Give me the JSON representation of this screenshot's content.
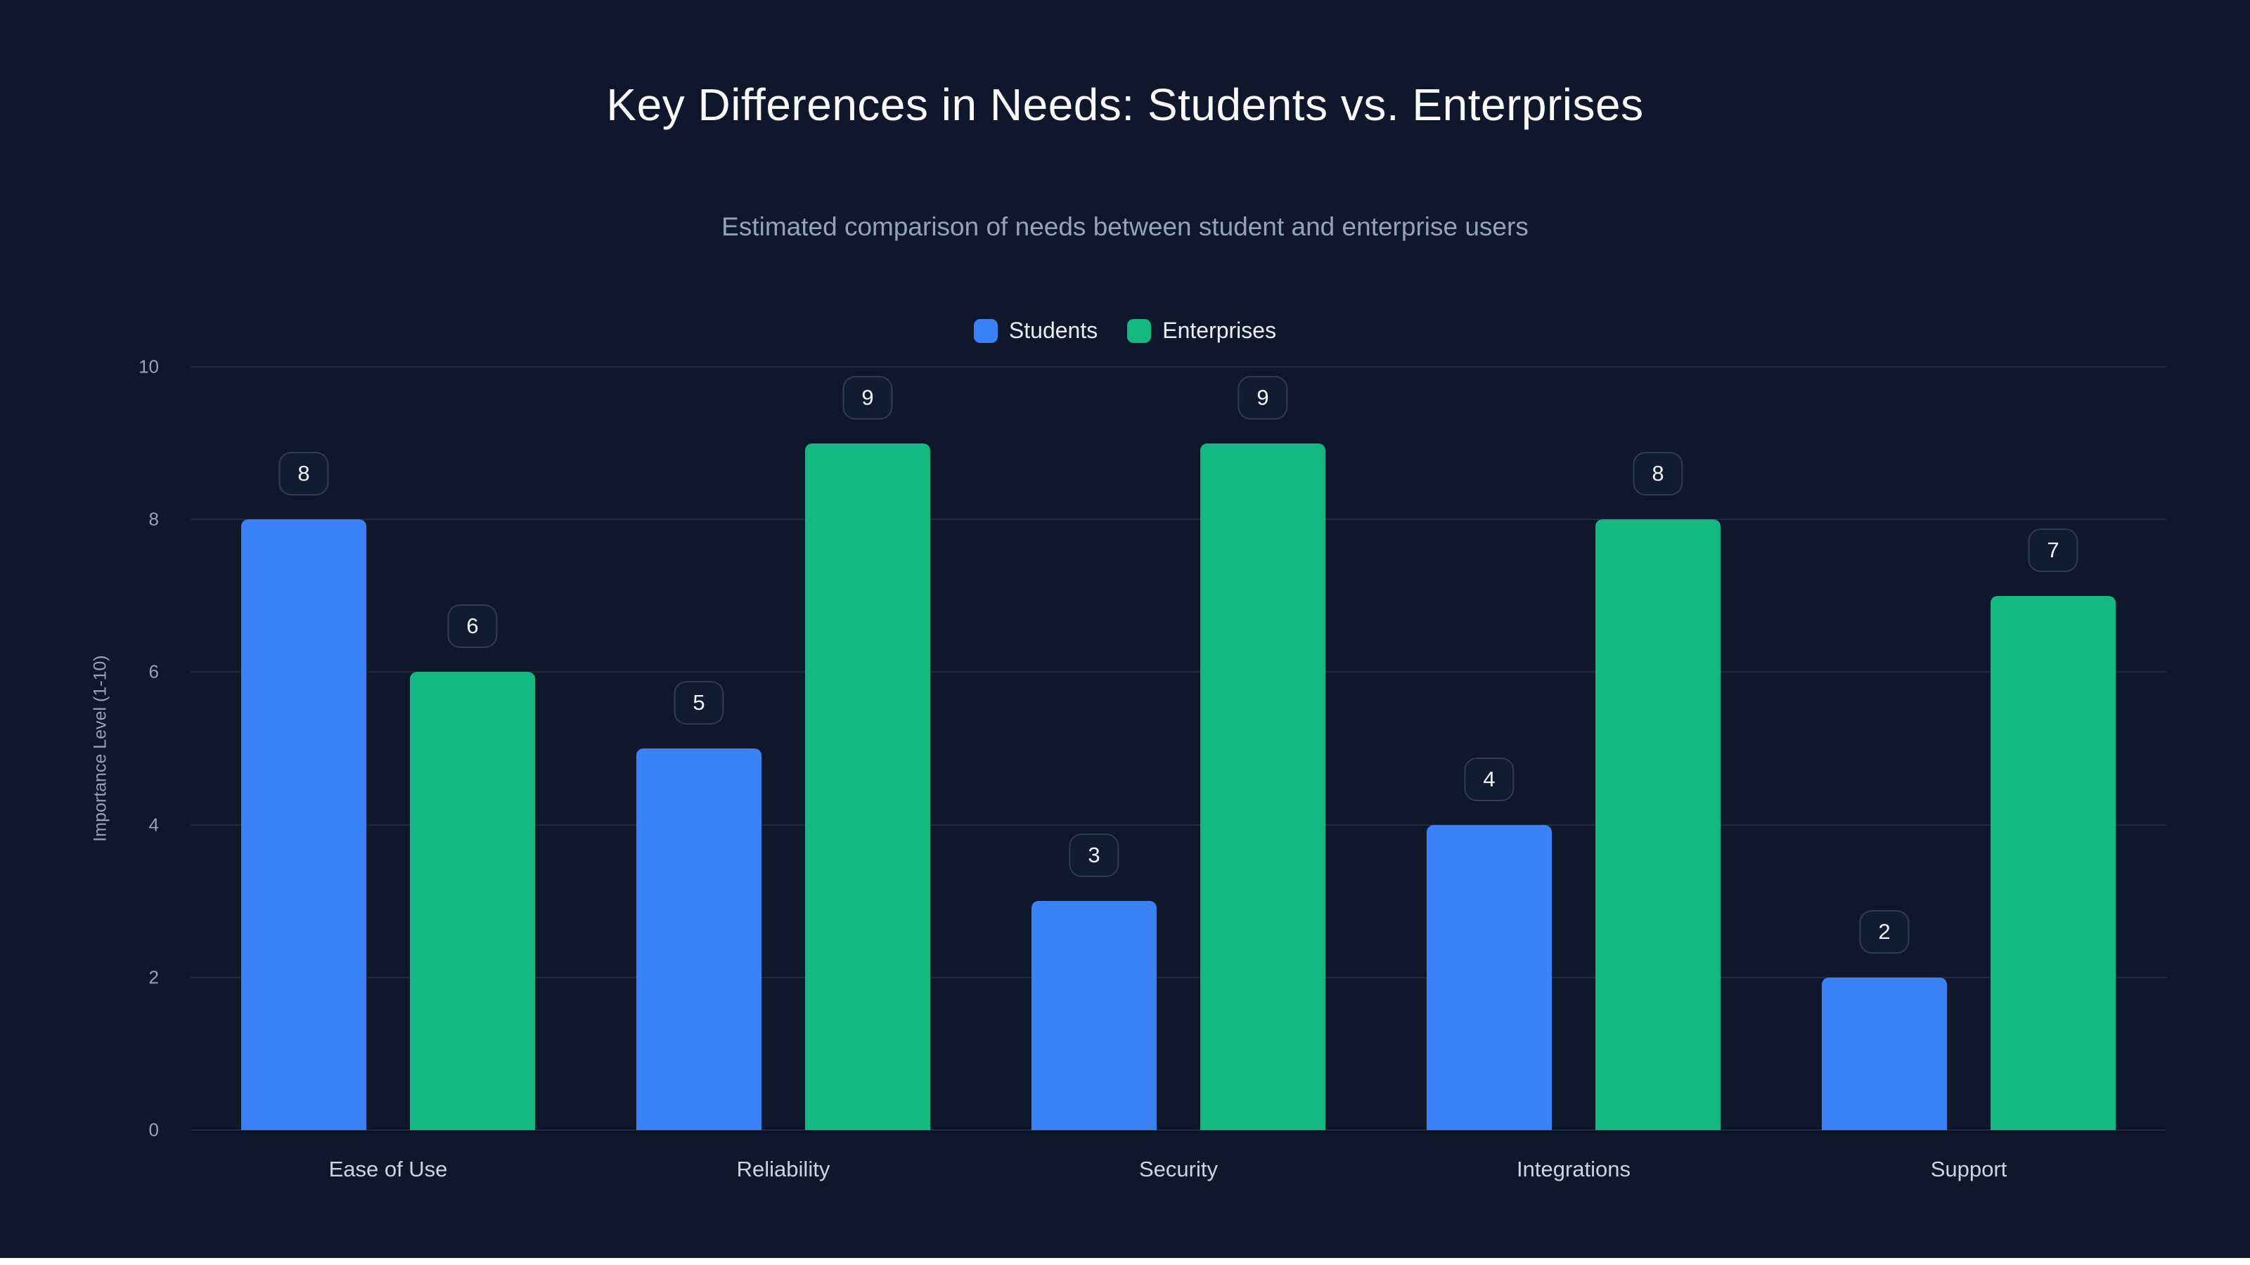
{
  "page": {
    "background_color": "#0f172a"
  },
  "chart_data": {
    "type": "bar",
    "title": "Key Differences in Needs: Students vs. Enterprises",
    "subtitle": "Estimated comparison of needs between student and enterprise users",
    "categories": [
      "Ease of Use",
      "Reliability",
      "Security",
      "Integrations",
      "Support"
    ],
    "series": [
      {
        "name": "Students",
        "color": "#3b82f6",
        "values": [
          8,
          5,
          3,
          4,
          2
        ]
      },
      {
        "name": "Enterprises",
        "color": "#13b981",
        "values": [
          6,
          9,
          9,
          8,
          7
        ]
      }
    ],
    "xlabel": "",
    "ylabel": "Importance Level (1-10)",
    "ylim": [
      0,
      10
    ],
    "yticks": [
      0,
      2,
      4,
      6,
      8,
      10
    ],
    "grid": true,
    "legend_position": "top",
    "data_labels": true
  }
}
